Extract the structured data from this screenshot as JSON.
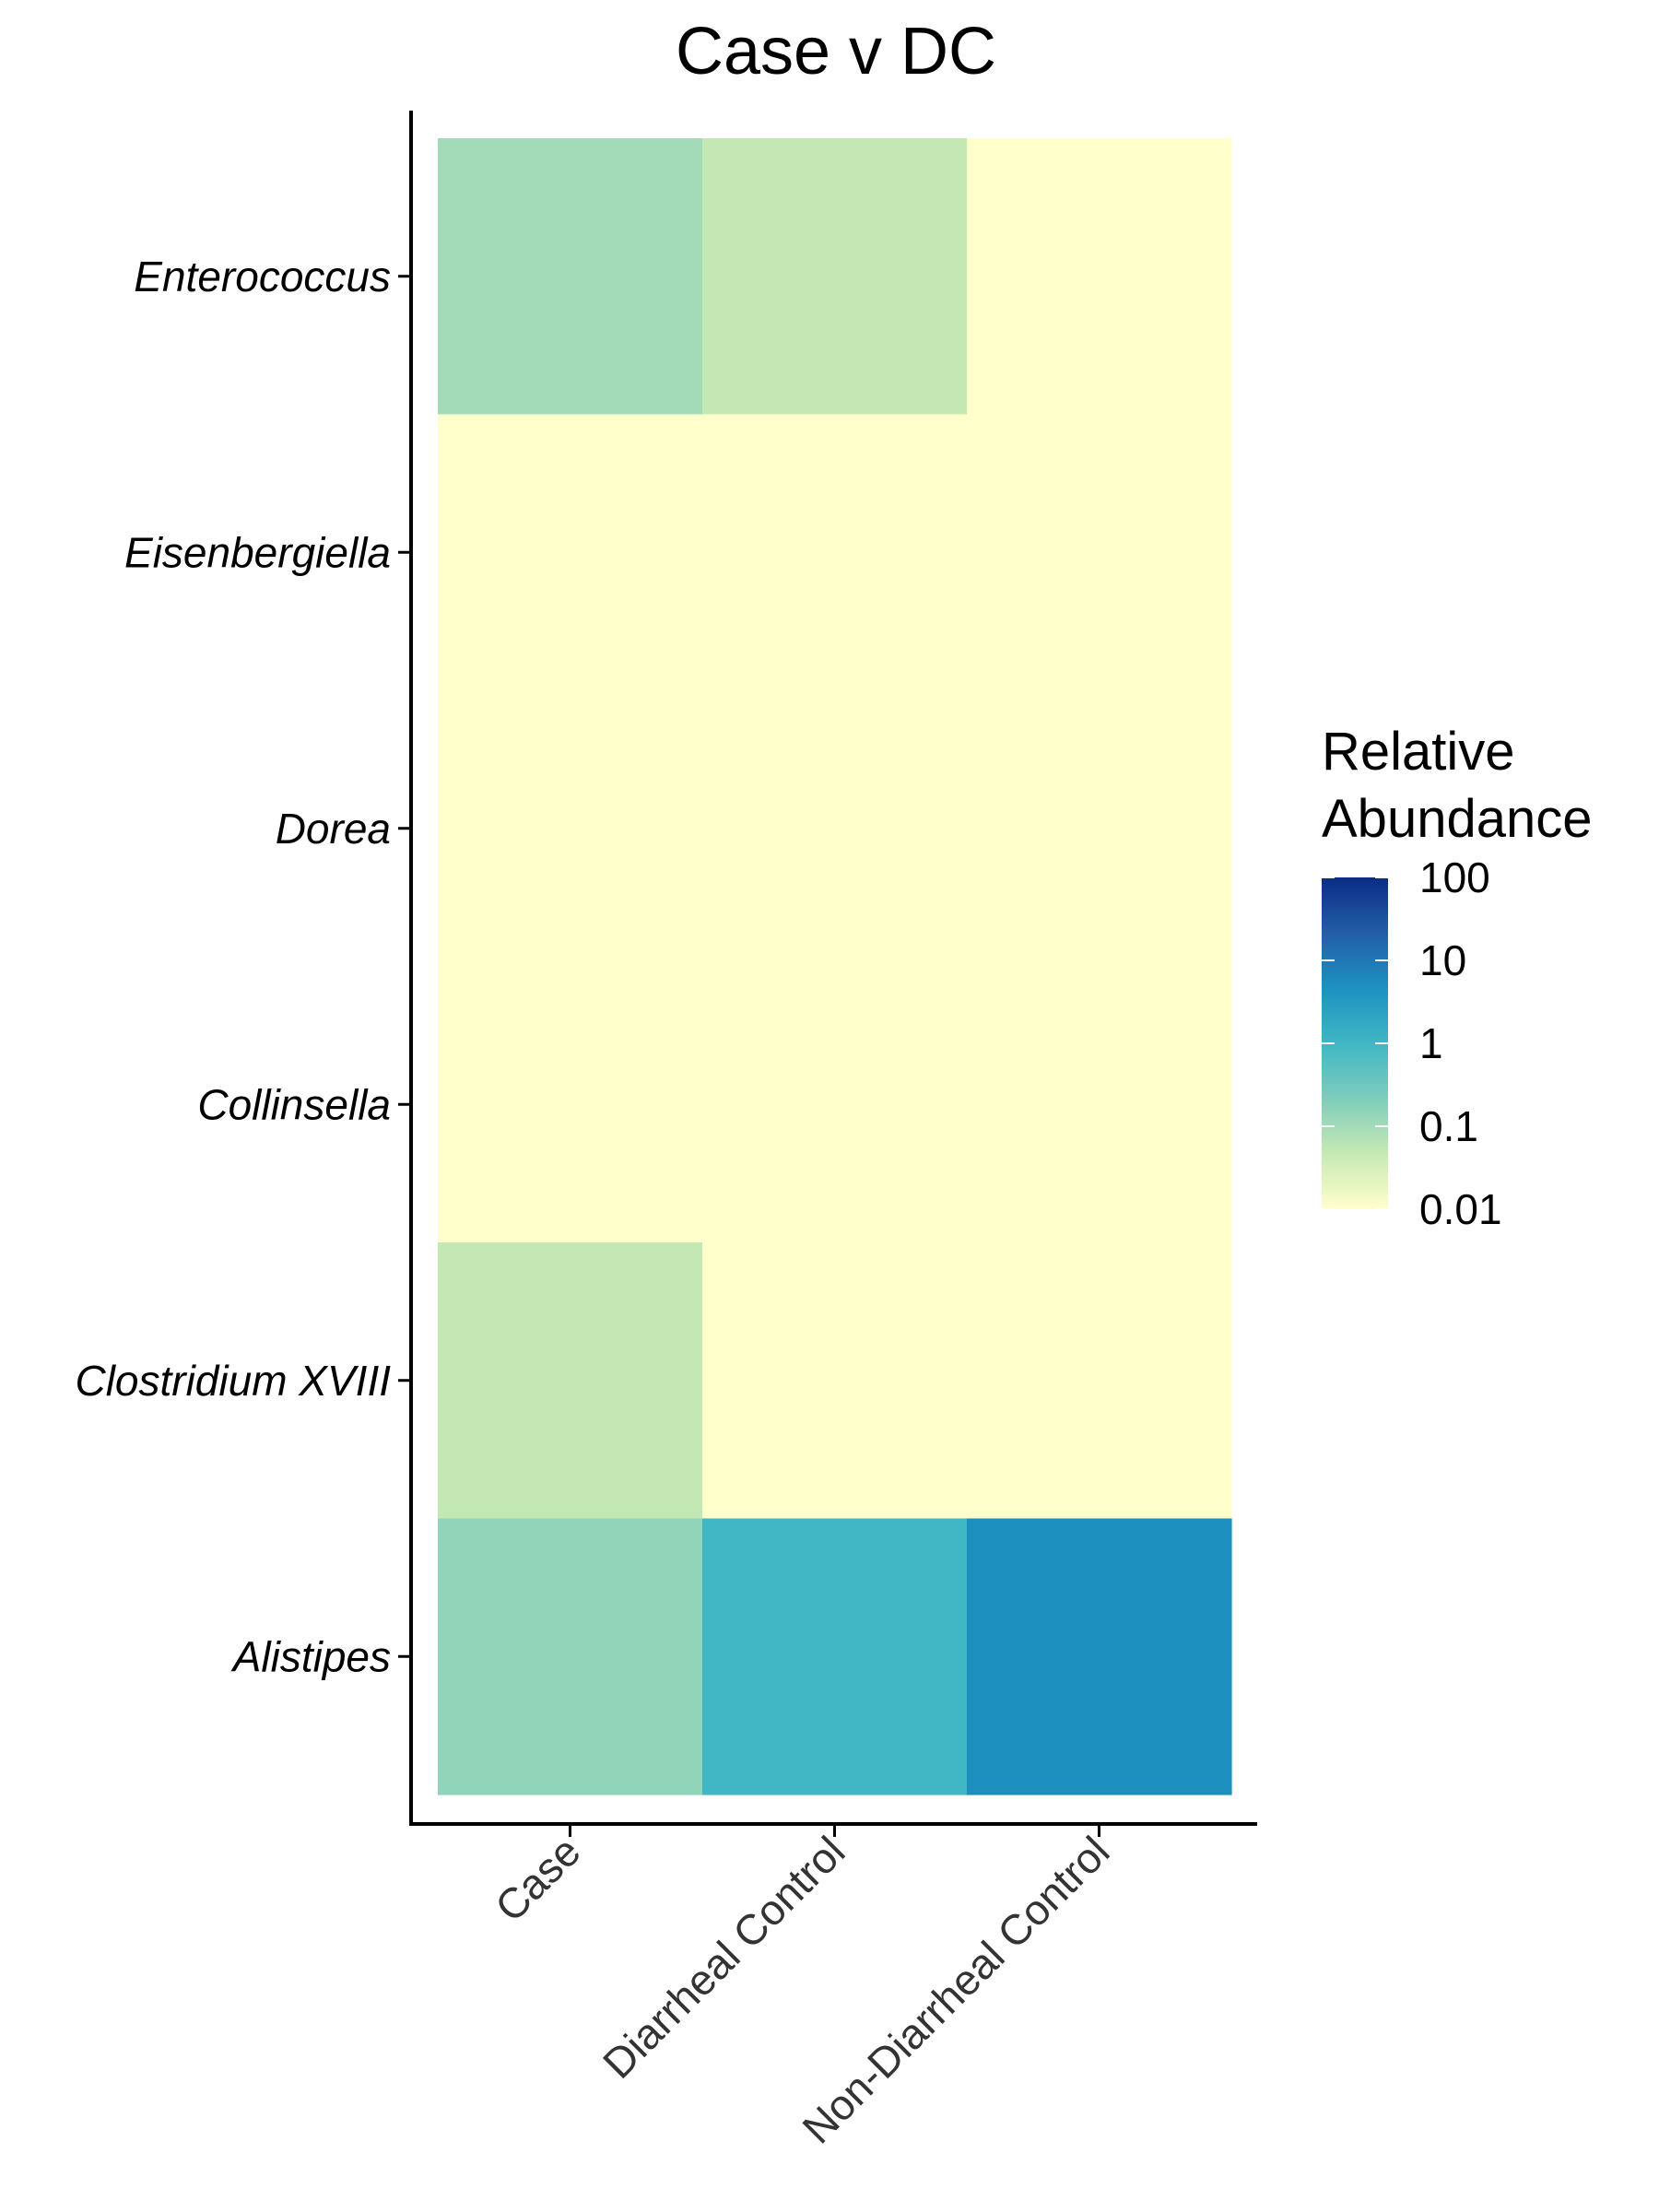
{
  "chart_data": {
    "type": "heatmap",
    "title": "Case v DC",
    "x_categories": [
      "Case",
      "Diarrheal Control",
      "Non-Diarrheal Control"
    ],
    "y_categories": [
      "Enterococcus",
      "Eisenbergiella",
      "Dorea",
      "Collinsella",
      "Clostridium XVIII",
      "Alistipes"
    ],
    "values": [
      [
        0.1,
        0.05,
        0.01
      ],
      [
        0.01,
        0.01,
        0.01
      ],
      [
        0.01,
        0.01,
        0.01
      ],
      [
        0.01,
        0.01,
        0.01
      ],
      [
        0.05,
        0.01,
        0.01
      ],
      [
        0.15,
        1,
        5
      ]
    ],
    "legend": {
      "title_lines": [
        "Relative",
        "Abundance"
      ],
      "labels": [
        "100",
        "10",
        "1",
        "0.1",
        "0.01"
      ],
      "scale": "log10",
      "range": [
        0.01,
        100
      ],
      "placement": "right"
    },
    "colors": {
      "scale": [
        "#FFFFCC",
        "#C7E9B4",
        "#7FCDBB",
        "#41B6C4",
        "#1D91C0",
        "#225EA8",
        "#0C2C84"
      ],
      "axis": "#000000"
    },
    "grid": false
  }
}
